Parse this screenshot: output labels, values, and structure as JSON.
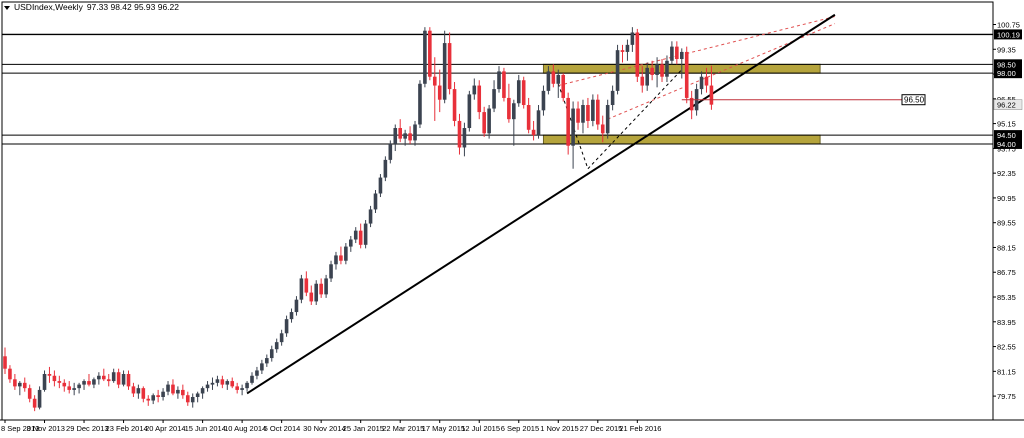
{
  "header": {
    "symbol": "USDIndex,Weekly",
    "ohlc": "97.33 98.42 95.93 96.22"
  },
  "colors": {
    "bull": "#3b4350",
    "bear": "#e8303a",
    "zone_fill": "#b5a43c",
    "trendline": "#000000",
    "channel": "#e05050",
    "grid": "#000000"
  },
  "chart_data": {
    "type": "candlestick",
    "title": "USDIndex,Weekly",
    "ylim": [
      78.4,
      101.4
    ],
    "x_tick_labels": [
      "8 Sep 2013",
      "3 Nov 2013",
      "29 Dec 2013",
      "23 Feb 2014",
      "20 Apr 2014",
      "15 Jun 2014",
      "10 Aug 2014",
      "5 Oct 2014",
      "30 Nov 2014",
      "25 Jan 2015",
      "22 Mar 2015",
      "17 May 2015",
      "12 Jul 2015",
      "6 Sep 2015",
      "1 Nov 2015",
      "27 Dec 2015",
      "21 Feb 2016"
    ],
    "y_tick_labels": [
      "100.75",
      "99.35",
      "97.95",
      "96.55",
      "95.15",
      "93.75",
      "92.35",
      "90.95",
      "89.55",
      "88.15",
      "86.75",
      "85.35",
      "83.95",
      "82.55",
      "81.15",
      "79.75"
    ],
    "y_tick_values": [
      100.75,
      99.35,
      97.95,
      96.55,
      95.15,
      93.75,
      92.35,
      90.95,
      89.55,
      88.15,
      86.75,
      85.35,
      83.95,
      82.55,
      81.15,
      79.75
    ],
    "current_price": {
      "label": "96.22",
      "value": 96.22
    },
    "levels": [
      {
        "label": "100.19",
        "value": 100.19
      },
      {
        "label": "98.50",
        "value": 98.5
      },
      {
        "label": "98.00",
        "value": 98.0
      },
      {
        "label": "94.50",
        "value": 94.5
      },
      {
        "label": "94.00",
        "value": 94.0
      }
    ],
    "zones": [
      {
        "from": 98.0,
        "to": 98.5,
        "start_week": 109,
        "end_week": 165
      },
      {
        "from": 94.0,
        "to": 94.5,
        "start_week": 109,
        "end_week": 165
      }
    ],
    "annotation": {
      "label": "96.50",
      "value": 96.5,
      "start_week": 137,
      "end_week": 172
    },
    "trendline": {
      "start_week": 49,
      "start_value": 79.9,
      "end_week": 168,
      "end_value": 101.3
    },
    "channel_lines": [
      {
        "start_week": 112,
        "start_value": 97.3,
        "end_week": 168,
        "end_value": 101.2
      },
      {
        "start_week": 122,
        "start_value": 95.4,
        "end_week": 168,
        "end_value": 100.8
      }
    ],
    "dashed_swing": [
      {
        "week": 112,
        "value": 97.4
      },
      {
        "week": 118,
        "value": 92.6
      },
      {
        "week": 137,
        "value": 98.2
      }
    ],
    "candles": [
      {
        "o": 82.0,
        "h": 82.5,
        "l": 81.0,
        "c": 81.3
      },
      {
        "o": 81.3,
        "h": 81.5,
        "l": 80.5,
        "c": 80.7
      },
      {
        "o": 80.7,
        "h": 81.0,
        "l": 80.1,
        "c": 80.3
      },
      {
        "o": 80.3,
        "h": 80.6,
        "l": 79.8,
        "c": 80.5
      },
      {
        "o": 80.5,
        "h": 80.8,
        "l": 80.0,
        "c": 80.2
      },
      {
        "o": 80.2,
        "h": 80.4,
        "l": 79.4,
        "c": 79.6
      },
      {
        "o": 79.6,
        "h": 79.8,
        "l": 78.9,
        "c": 79.1
      },
      {
        "o": 79.1,
        "h": 80.3,
        "l": 79.0,
        "c": 80.1
      },
      {
        "o": 80.1,
        "h": 81.2,
        "l": 80.0,
        "c": 81.0
      },
      {
        "o": 81.0,
        "h": 81.4,
        "l": 80.5,
        "c": 80.9
      },
      {
        "o": 80.9,
        "h": 81.2,
        "l": 80.3,
        "c": 80.6
      },
      {
        "o": 80.6,
        "h": 80.9,
        "l": 80.2,
        "c": 80.5
      },
      {
        "o": 80.5,
        "h": 80.7,
        "l": 80.0,
        "c": 80.3
      },
      {
        "o": 80.3,
        "h": 80.6,
        "l": 79.9,
        "c": 80.1
      },
      {
        "o": 80.1,
        "h": 80.5,
        "l": 79.8,
        "c": 80.2
      },
      {
        "o": 80.2,
        "h": 80.5,
        "l": 79.9,
        "c": 80.4
      },
      {
        "o": 80.4,
        "h": 80.7,
        "l": 80.1,
        "c": 80.6
      },
      {
        "o": 80.6,
        "h": 81.0,
        "l": 80.3,
        "c": 80.4
      },
      {
        "o": 80.4,
        "h": 80.8,
        "l": 80.2,
        "c": 80.7
      },
      {
        "o": 80.7,
        "h": 81.1,
        "l": 80.4,
        "c": 80.9
      },
      {
        "o": 80.9,
        "h": 81.3,
        "l": 80.6,
        "c": 80.7
      },
      {
        "o": 80.7,
        "h": 81.0,
        "l": 80.3,
        "c": 80.6
      },
      {
        "o": 80.6,
        "h": 81.3,
        "l": 80.5,
        "c": 81.1
      },
      {
        "o": 81.1,
        "h": 81.3,
        "l": 80.2,
        "c": 80.4
      },
      {
        "o": 80.4,
        "h": 81.2,
        "l": 80.3,
        "c": 81.0
      },
      {
        "o": 81.0,
        "h": 81.2,
        "l": 80.1,
        "c": 80.3
      },
      {
        "o": 80.3,
        "h": 80.5,
        "l": 79.7,
        "c": 79.9
      },
      {
        "o": 79.9,
        "h": 80.4,
        "l": 79.6,
        "c": 80.2
      },
      {
        "o": 80.2,
        "h": 80.3,
        "l": 79.4,
        "c": 79.6
      },
      {
        "o": 79.6,
        "h": 79.8,
        "l": 79.2,
        "c": 79.5
      },
      {
        "o": 79.5,
        "h": 79.9,
        "l": 79.3,
        "c": 79.8
      },
      {
        "o": 79.8,
        "h": 80.1,
        "l": 79.4,
        "c": 79.7
      },
      {
        "o": 79.7,
        "h": 80.2,
        "l": 79.5,
        "c": 80.0
      },
      {
        "o": 80.0,
        "h": 80.6,
        "l": 79.8,
        "c": 80.4
      },
      {
        "o": 80.4,
        "h": 80.7,
        "l": 79.8,
        "c": 79.9
      },
      {
        "o": 79.9,
        "h": 80.3,
        "l": 79.6,
        "c": 80.1
      },
      {
        "o": 80.1,
        "h": 80.4,
        "l": 79.6,
        "c": 79.8
      },
      {
        "o": 79.8,
        "h": 80.0,
        "l": 79.2,
        "c": 79.4
      },
      {
        "o": 79.4,
        "h": 79.9,
        "l": 79.1,
        "c": 79.7
      },
      {
        "o": 79.7,
        "h": 80.0,
        "l": 79.4,
        "c": 79.9
      },
      {
        "o": 79.9,
        "h": 80.3,
        "l": 79.6,
        "c": 80.2
      },
      {
        "o": 80.2,
        "h": 80.6,
        "l": 80.0,
        "c": 80.4
      },
      {
        "o": 80.4,
        "h": 80.8,
        "l": 80.1,
        "c": 80.5
      },
      {
        "o": 80.5,
        "h": 80.9,
        "l": 80.3,
        "c": 80.7
      },
      {
        "o": 80.7,
        "h": 80.9,
        "l": 80.2,
        "c": 80.4
      },
      {
        "o": 80.4,
        "h": 80.7,
        "l": 80.1,
        "c": 80.6
      },
      {
        "o": 80.6,
        "h": 80.8,
        "l": 80.2,
        "c": 80.3
      },
      {
        "o": 80.3,
        "h": 80.5,
        "l": 79.9,
        "c": 80.1
      },
      {
        "o": 80.1,
        "h": 80.4,
        "l": 79.8,
        "c": 80.2
      },
      {
        "o": 80.2,
        "h": 80.6,
        "l": 80.0,
        "c": 80.5
      },
      {
        "o": 80.5,
        "h": 81.1,
        "l": 80.4,
        "c": 80.9
      },
      {
        "o": 80.9,
        "h": 81.4,
        "l": 80.7,
        "c": 81.2
      },
      {
        "o": 81.2,
        "h": 81.8,
        "l": 81.0,
        "c": 81.6
      },
      {
        "o": 81.6,
        "h": 82.1,
        "l": 81.4,
        "c": 81.9
      },
      {
        "o": 81.9,
        "h": 82.6,
        "l": 81.7,
        "c": 82.4
      },
      {
        "o": 82.4,
        "h": 83.0,
        "l": 82.2,
        "c": 82.8
      },
      {
        "o": 82.8,
        "h": 83.5,
        "l": 82.6,
        "c": 83.3
      },
      {
        "o": 83.3,
        "h": 84.3,
        "l": 83.1,
        "c": 84.1
      },
      {
        "o": 84.1,
        "h": 84.7,
        "l": 83.9,
        "c": 84.5
      },
      {
        "o": 84.5,
        "h": 85.4,
        "l": 84.3,
        "c": 85.2
      },
      {
        "o": 85.2,
        "h": 86.6,
        "l": 85.0,
        "c": 86.4
      },
      {
        "o": 86.4,
        "h": 86.8,
        "l": 85.4,
        "c": 85.6
      },
      {
        "o": 85.6,
        "h": 86.0,
        "l": 84.9,
        "c": 85.1
      },
      {
        "o": 85.1,
        "h": 86.3,
        "l": 84.9,
        "c": 86.1
      },
      {
        "o": 86.1,
        "h": 86.4,
        "l": 85.3,
        "c": 85.5
      },
      {
        "o": 85.5,
        "h": 86.6,
        "l": 85.3,
        "c": 86.4
      },
      {
        "o": 86.4,
        "h": 87.4,
        "l": 86.2,
        "c": 87.2
      },
      {
        "o": 87.2,
        "h": 87.9,
        "l": 86.9,
        "c": 87.7
      },
      {
        "o": 87.7,
        "h": 88.2,
        "l": 87.2,
        "c": 87.4
      },
      {
        "o": 87.4,
        "h": 88.4,
        "l": 87.2,
        "c": 88.2
      },
      {
        "o": 88.2,
        "h": 88.8,
        "l": 87.9,
        "c": 88.6
      },
      {
        "o": 88.6,
        "h": 89.3,
        "l": 88.4,
        "c": 89.1
      },
      {
        "o": 89.1,
        "h": 89.5,
        "l": 88.1,
        "c": 88.3
      },
      {
        "o": 88.3,
        "h": 89.7,
        "l": 88.1,
        "c": 89.5
      },
      {
        "o": 89.5,
        "h": 90.5,
        "l": 89.3,
        "c": 90.3
      },
      {
        "o": 90.3,
        "h": 91.4,
        "l": 90.1,
        "c": 91.2
      },
      {
        "o": 91.2,
        "h": 92.3,
        "l": 91.0,
        "c": 92.1
      },
      {
        "o": 92.1,
        "h": 93.3,
        "l": 91.9,
        "c": 93.1
      },
      {
        "o": 93.1,
        "h": 94.2,
        "l": 92.9,
        "c": 94.0
      },
      {
        "o": 94.0,
        "h": 95.1,
        "l": 93.6,
        "c": 94.9
      },
      {
        "o": 94.9,
        "h": 95.4,
        "l": 94.1,
        "c": 94.3
      },
      {
        "o": 94.3,
        "h": 94.8,
        "l": 93.9,
        "c": 94.6
      },
      {
        "o": 94.6,
        "h": 95.0,
        "l": 94.0,
        "c": 94.2
      },
      {
        "o": 94.2,
        "h": 95.3,
        "l": 93.9,
        "c": 95.1
      },
      {
        "o": 95.1,
        "h": 97.6,
        "l": 94.9,
        "c": 97.4
      },
      {
        "o": 97.4,
        "h": 100.6,
        "l": 97.2,
        "c": 100.4
      },
      {
        "o": 100.4,
        "h": 100.6,
        "l": 97.6,
        "c": 97.8
      },
      {
        "o": 97.8,
        "h": 98.9,
        "l": 95.3,
        "c": 97.3
      },
      {
        "o": 97.3,
        "h": 98.2,
        "l": 95.8,
        "c": 96.5
      },
      {
        "o": 96.5,
        "h": 100.4,
        "l": 96.3,
        "c": 99.7
      },
      {
        "o": 99.7,
        "h": 100.3,
        "l": 96.8,
        "c": 97.1
      },
      {
        "o": 97.1,
        "h": 97.5,
        "l": 95.0,
        "c": 95.3
      },
      {
        "o": 95.3,
        "h": 95.7,
        "l": 93.4,
        "c": 93.8
      },
      {
        "o": 93.8,
        "h": 95.2,
        "l": 93.3,
        "c": 94.9
      },
      {
        "o": 94.9,
        "h": 97.0,
        "l": 94.7,
        "c": 96.8
      },
      {
        "o": 96.8,
        "h": 97.7,
        "l": 96.5,
        "c": 97.3
      },
      {
        "o": 97.3,
        "h": 97.6,
        "l": 95.4,
        "c": 95.8
      },
      {
        "o": 95.8,
        "h": 96.1,
        "l": 94.4,
        "c": 94.6
      },
      {
        "o": 94.6,
        "h": 96.2,
        "l": 94.3,
        "c": 96.0
      },
      {
        "o": 96.0,
        "h": 97.6,
        "l": 95.8,
        "c": 97.1
      },
      {
        "o": 97.1,
        "h": 98.4,
        "l": 96.9,
        "c": 98.1
      },
      {
        "o": 98.1,
        "h": 98.3,
        "l": 96.4,
        "c": 96.6
      },
      {
        "o": 96.6,
        "h": 97.4,
        "l": 95.2,
        "c": 95.4
      },
      {
        "o": 95.4,
        "h": 96.5,
        "l": 93.9,
        "c": 96.3
      },
      {
        "o": 96.3,
        "h": 97.9,
        "l": 96.1,
        "c": 97.6
      },
      {
        "o": 97.6,
        "h": 97.8,
        "l": 96.0,
        "c": 96.2
      },
      {
        "o": 96.2,
        "h": 96.6,
        "l": 94.6,
        "c": 94.8
      },
      {
        "o": 94.8,
        "h": 95.3,
        "l": 94.2,
        "c": 94.5
      },
      {
        "o": 94.5,
        "h": 96.2,
        "l": 94.3,
        "c": 95.9
      },
      {
        "o": 95.9,
        "h": 97.3,
        "l": 95.6,
        "c": 97.0
      },
      {
        "o": 97.0,
        "h": 98.4,
        "l": 96.8,
        "c": 98.1
      },
      {
        "o": 98.1,
        "h": 98.5,
        "l": 97.2,
        "c": 97.4
      },
      {
        "o": 97.4,
        "h": 98.2,
        "l": 96.6,
        "c": 97.9
      },
      {
        "o": 97.9,
        "h": 98.0,
        "l": 96.4,
        "c": 96.6
      },
      {
        "o": 96.6,
        "h": 96.9,
        "l": 93.4,
        "c": 93.9
      },
      {
        "o": 93.9,
        "h": 96.4,
        "l": 92.6,
        "c": 96.0
      },
      {
        "o": 96.0,
        "h": 96.4,
        "l": 94.8,
        "c": 95.2
      },
      {
        "o": 95.2,
        "h": 96.5,
        "l": 94.6,
        "c": 96.2
      },
      {
        "o": 96.2,
        "h": 96.6,
        "l": 94.9,
        "c": 95.3
      },
      {
        "o": 95.3,
        "h": 96.8,
        "l": 95.0,
        "c": 96.5
      },
      {
        "o": 96.5,
        "h": 96.8,
        "l": 94.8,
        "c": 95.1
      },
      {
        "o": 95.1,
        "h": 95.6,
        "l": 94.1,
        "c": 94.6
      },
      {
        "o": 94.6,
        "h": 96.5,
        "l": 94.3,
        "c": 96.2
      },
      {
        "o": 96.2,
        "h": 97.3,
        "l": 95.9,
        "c": 97.0
      },
      {
        "o": 97.0,
        "h": 99.6,
        "l": 96.8,
        "c": 99.3
      },
      {
        "o": 99.3,
        "h": 99.6,
        "l": 98.6,
        "c": 99.2
      },
      {
        "o": 99.2,
        "h": 99.9,
        "l": 98.7,
        "c": 99.6
      },
      {
        "o": 99.6,
        "h": 100.6,
        "l": 99.2,
        "c": 100.3
      },
      {
        "o": 100.3,
        "h": 100.5,
        "l": 97.5,
        "c": 97.8
      },
      {
        "o": 97.8,
        "h": 98.4,
        "l": 96.9,
        "c": 97.3
      },
      {
        "o": 97.3,
        "h": 98.6,
        "l": 97.0,
        "c": 98.3
      },
      {
        "o": 98.3,
        "h": 98.7,
        "l": 97.6,
        "c": 97.9
      },
      {
        "o": 97.9,
        "h": 98.9,
        "l": 97.2,
        "c": 98.5
      },
      {
        "o": 98.5,
        "h": 98.8,
        "l": 97.5,
        "c": 97.8
      },
      {
        "o": 97.8,
        "h": 99.0,
        "l": 97.5,
        "c": 98.7
      },
      {
        "o": 98.7,
        "h": 99.8,
        "l": 98.5,
        "c": 99.5
      },
      {
        "o": 99.5,
        "h": 99.8,
        "l": 98.5,
        "c": 98.8
      },
      {
        "o": 98.8,
        "h": 99.4,
        "l": 97.7,
        "c": 99.2
      },
      {
        "o": 99.2,
        "h": 99.5,
        "l": 96.3,
        "c": 96.6
      },
      {
        "o": 96.6,
        "h": 97.0,
        "l": 95.4,
        "c": 95.9
      },
      {
        "o": 95.9,
        "h": 97.4,
        "l": 95.6,
        "c": 97.1
      },
      {
        "o": 97.1,
        "h": 98.1,
        "l": 96.8,
        "c": 97.8
      },
      {
        "o": 97.8,
        "h": 98.3,
        "l": 96.9,
        "c": 97.3
      },
      {
        "o": 97.3,
        "h": 98.42,
        "l": 95.93,
        "c": 96.22
      }
    ]
  }
}
